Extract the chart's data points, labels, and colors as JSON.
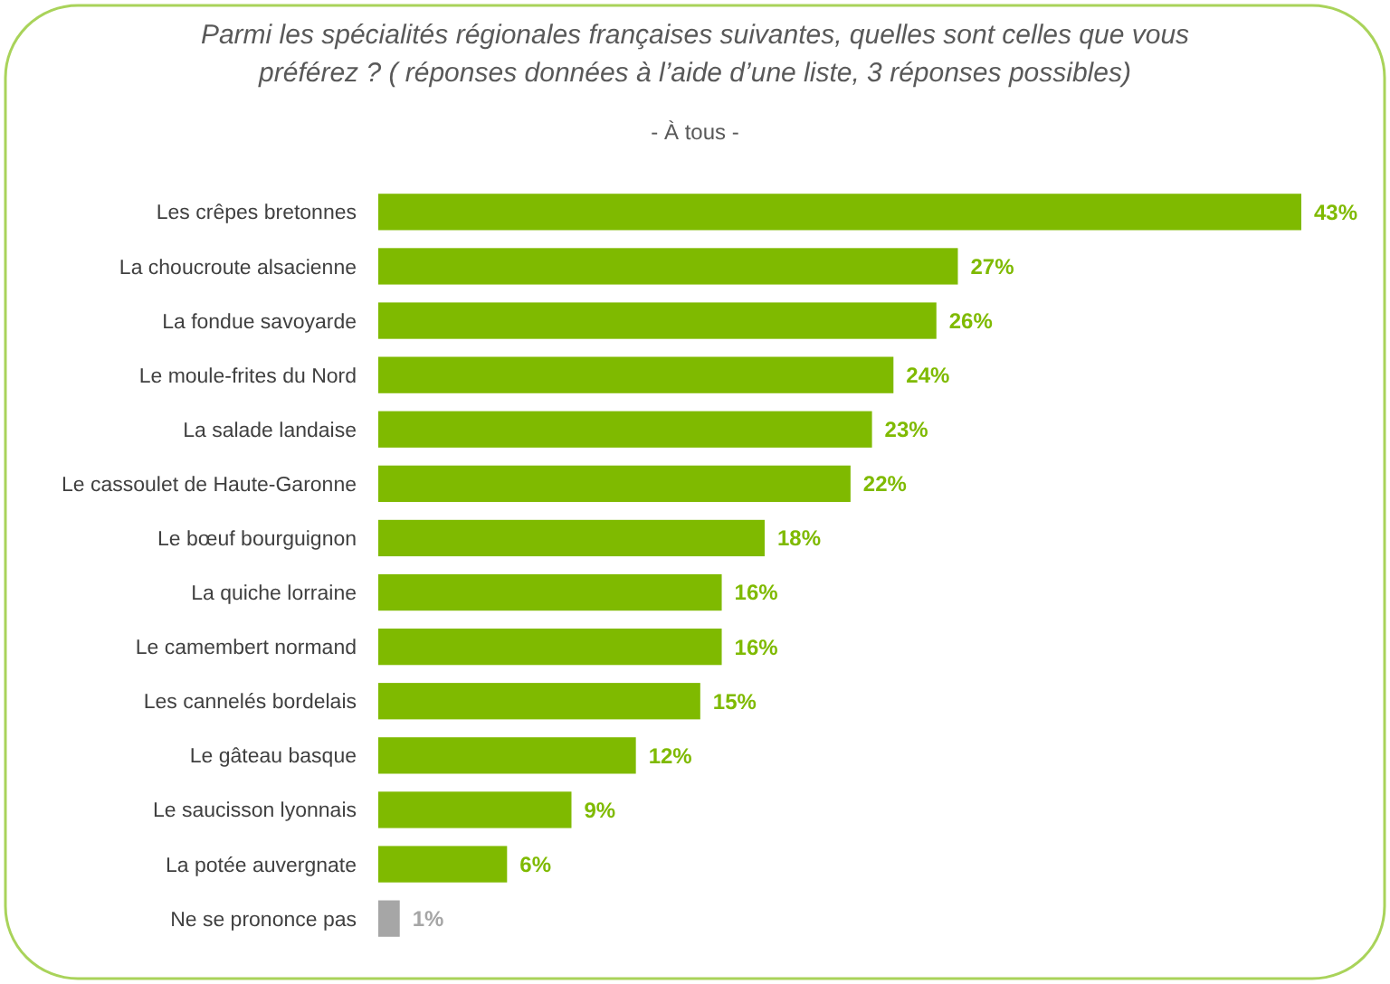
{
  "chart_data": {
    "type": "bar",
    "orientation": "horizontal",
    "title": "Parmi les spécialités régionales françaises suivantes, quelles sont celles que vous\npréférez ? ( réponses données à l’aide d’une liste, 3 réponses possibles)",
    "subtitle": "- À tous -",
    "categories": [
      "Les crêpes bretonnes",
      "La choucroute alsacienne",
      "La fondue savoyarde",
      "Le moule-frites du Nord",
      "La salade landaise",
      "Le cassoulet de Haute-Garonne",
      "Le bœuf bourguignon",
      "La quiche lorraine",
      "Le camembert normand",
      "Les cannelés bordelais",
      "Le gâteau basque",
      "Le saucisson lyonnais",
      "La potée auvergnate",
      "Ne se prononce pas"
    ],
    "values": [
      43,
      27,
      26,
      24,
      23,
      22,
      18,
      16,
      16,
      15,
      12,
      9,
      6,
      1
    ],
    "colors": [
      "#7fba00",
      "#7fba00",
      "#7fba00",
      "#7fba00",
      "#7fba00",
      "#7fba00",
      "#7fba00",
      "#7fba00",
      "#7fba00",
      "#7fba00",
      "#7fba00",
      "#7fba00",
      "#7fba00",
      "#a6a6a6"
    ],
    "value_labels": [
      "43%",
      "27%",
      "26%",
      "24%",
      "23%",
      "22%",
      "18%",
      "16%",
      "16%",
      "15%",
      "12%",
      "9%",
      "6%",
      "1%"
    ]
  }
}
